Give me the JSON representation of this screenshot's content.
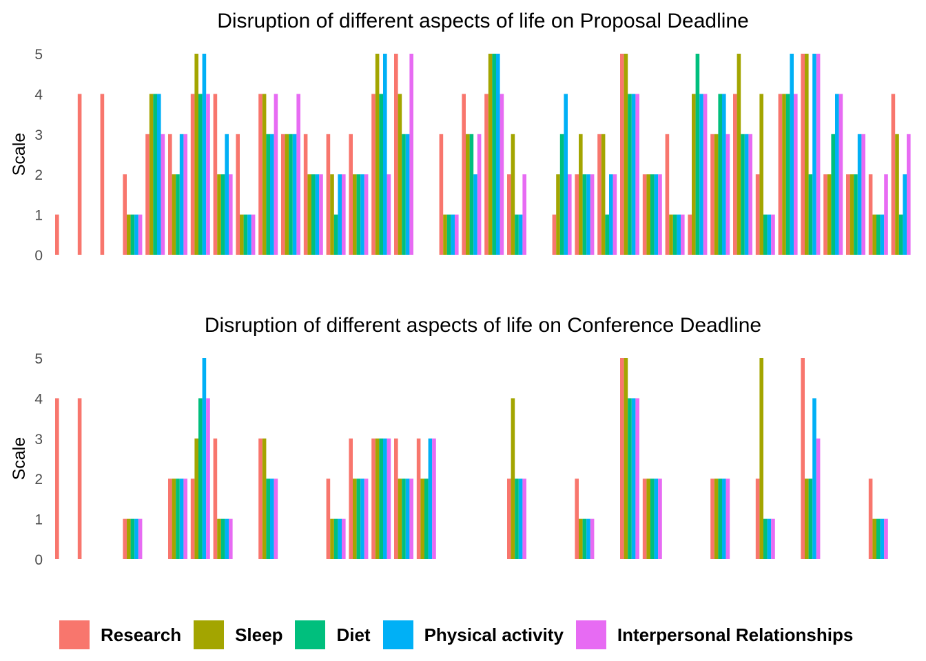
{
  "chart_data": [
    {
      "type": "bar",
      "title": "Disruption of different aspects of life on Proposal Deadline",
      "ylabel": "Scale",
      "xlabel": "",
      "ylim": [
        0,
        5
      ],
      "yticks": [
        0,
        1,
        2,
        3,
        4,
        5
      ],
      "n_categories": 38,
      "series_names": [
        "Research",
        "Sleep",
        "Diet",
        "Physical activity",
        "Interpersonal Relationships"
      ],
      "rows": [
        [
          1,
          null,
          null,
          null,
          null
        ],
        [
          4,
          null,
          null,
          null,
          null
        ],
        [
          4,
          null,
          null,
          null,
          null
        ],
        [
          2,
          1,
          1,
          1,
          1
        ],
        [
          3,
          4,
          4,
          4,
          3
        ],
        [
          3,
          2,
          2,
          3,
          3
        ],
        [
          4,
          5,
          4,
          5,
          4
        ],
        [
          4,
          2,
          2,
          3,
          2
        ],
        [
          3,
          1,
          1,
          1,
          1
        ],
        [
          4,
          4,
          3,
          3,
          4
        ],
        [
          3,
          3,
          3,
          3,
          4
        ],
        [
          3,
          2,
          2,
          2,
          2
        ],
        [
          3,
          2,
          1,
          2,
          2
        ],
        [
          3,
          2,
          2,
          2,
          2
        ],
        [
          4,
          5,
          4,
          5,
          2
        ],
        [
          5,
          4,
          3,
          3,
          5
        ],
        [
          null,
          null,
          null,
          null,
          null
        ],
        [
          3,
          1,
          1,
          1,
          1
        ],
        [
          4,
          3,
          3,
          2,
          3
        ],
        [
          4,
          5,
          5,
          5,
          4
        ],
        [
          2,
          3,
          1,
          1,
          2
        ],
        [
          null,
          null,
          null,
          null,
          null
        ],
        [
          1,
          2,
          3,
          4,
          2
        ],
        [
          2,
          3,
          2,
          2,
          2
        ],
        [
          3,
          3,
          1,
          2,
          2
        ],
        [
          5,
          5,
          4,
          4,
          4
        ],
        [
          2,
          2,
          2,
          2,
          2
        ],
        [
          3,
          1,
          1,
          1,
          1
        ],
        [
          1,
          4,
          5,
          4,
          4
        ],
        [
          3,
          3,
          4,
          4,
          3
        ],
        [
          4,
          5,
          3,
          3,
          3
        ],
        [
          2,
          4,
          1,
          1,
          1
        ],
        [
          4,
          4,
          4,
          5,
          4
        ],
        [
          5,
          5,
          2,
          5,
          5
        ],
        [
          2,
          2,
          3,
          4,
          4
        ],
        [
          2,
          2,
          2,
          3,
          3
        ],
        [
          2,
          1,
          1,
          1,
          2
        ],
        [
          4,
          3,
          1,
          2,
          3
        ]
      ]
    },
    {
      "type": "bar",
      "title": "Disruption of different aspects of life on Conference Deadline",
      "ylabel": "Scale",
      "xlabel": "",
      "ylim": [
        0,
        5
      ],
      "yticks": [
        0,
        1,
        2,
        3,
        4,
        5
      ],
      "n_categories": 38,
      "series_names": [
        "Research",
        "Sleep",
        "Diet",
        "Physical activity",
        "Interpersonal Relationships"
      ],
      "rows": [
        [
          4,
          null,
          null,
          null,
          null
        ],
        [
          4,
          null,
          null,
          null,
          null
        ],
        [
          null,
          null,
          null,
          null,
          null
        ],
        [
          1,
          1,
          1,
          1,
          1
        ],
        [
          null,
          null,
          null,
          null,
          null
        ],
        [
          2,
          2,
          2,
          2,
          2
        ],
        [
          2,
          3,
          4,
          5,
          4
        ],
        [
          3,
          1,
          1,
          1,
          1
        ],
        [
          null,
          null,
          null,
          null,
          null
        ],
        [
          3,
          3,
          2,
          2,
          2
        ],
        [
          null,
          null,
          null,
          null,
          null
        ],
        [
          null,
          null,
          null,
          null,
          null
        ],
        [
          2,
          1,
          1,
          1,
          1
        ],
        [
          3,
          2,
          2,
          2,
          2
        ],
        [
          3,
          3,
          3,
          3,
          3
        ],
        [
          3,
          2,
          2,
          2,
          2
        ],
        [
          3,
          2,
          2,
          3,
          3
        ],
        [
          null,
          null,
          null,
          null,
          null
        ],
        [
          null,
          null,
          null,
          null,
          null
        ],
        [
          null,
          null,
          null,
          null,
          null
        ],
        [
          2,
          4,
          2,
          2,
          2
        ],
        [
          null,
          null,
          null,
          null,
          null
        ],
        [
          null,
          null,
          null,
          null,
          null
        ],
        [
          2,
          1,
          1,
          1,
          1
        ],
        [
          null,
          null,
          null,
          null,
          null
        ],
        [
          5,
          5,
          4,
          4,
          4
        ],
        [
          2,
          2,
          2,
          2,
          2
        ],
        [
          null,
          null,
          null,
          null,
          null
        ],
        [
          null,
          null,
          null,
          null,
          null
        ],
        [
          2,
          2,
          2,
          2,
          2
        ],
        [
          null,
          null,
          null,
          null,
          null
        ],
        [
          2,
          5,
          1,
          1,
          1
        ],
        [
          null,
          null,
          null,
          null,
          null
        ],
        [
          5,
          2,
          2,
          4,
          3
        ],
        [
          null,
          null,
          null,
          null,
          null
        ],
        [
          null,
          null,
          null,
          null,
          null
        ],
        [
          2,
          1,
          1,
          1,
          1
        ],
        [
          null,
          null,
          null,
          null,
          null
        ]
      ]
    }
  ],
  "legend": {
    "items": [
      {
        "label": "Research",
        "color": "#F8766D"
      },
      {
        "label": "Sleep",
        "color": "#A3A500"
      },
      {
        "label": "Diet",
        "color": "#00BF7D"
      },
      {
        "label": "Physical activity",
        "color": "#00B0F6"
      },
      {
        "label": "Interpersonal Relationships",
        "color": "#E76BF3"
      }
    ]
  }
}
